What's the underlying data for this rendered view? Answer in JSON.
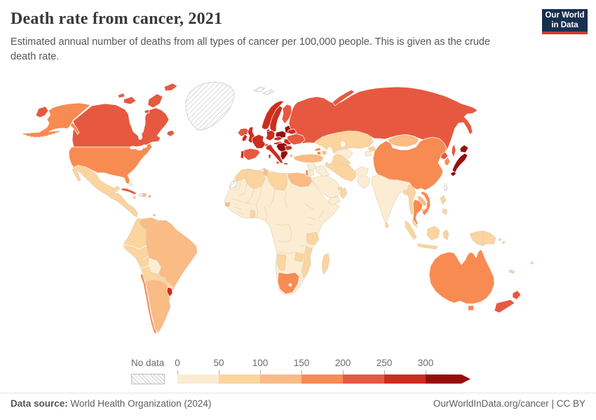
{
  "header": {
    "title": "Death rate from cancer, 2021",
    "subtitle": "Estimated annual number of deaths from all types of cancer per 100,000 people. This is given as the crude death rate.",
    "logo": {
      "line1": "Our World",
      "line2": "in Data",
      "bg": "#18304f",
      "accent": "#cf3934"
    }
  },
  "legend": {
    "no_data_label": "No data",
    "ticks": [
      "0",
      "50",
      "100",
      "150",
      "200",
      "250",
      "300"
    ]
  },
  "footer": {
    "source_label": "Data source:",
    "source_text": " World Health Organization (2024)",
    "right_text": "OurWorldInData.org/cancer | CC BY"
  },
  "chart_data": {
    "type": "heatmap",
    "subtype": "world-choropleth-map",
    "title": "Death rate from cancer, 2021",
    "unit": "deaths per 100,000 people",
    "year": 2021,
    "legend_position": "bottom",
    "bins": [
      {
        "label": "0-50",
        "color": "#fcecd2"
      },
      {
        "label": "50-100",
        "color": "#fbd49e"
      },
      {
        "label": "100-150",
        "color": "#fabb84"
      },
      {
        "label": "150-200",
        "color": "#f88b52"
      },
      {
        "label": "200-250",
        "color": "#e65940"
      },
      {
        "label": "250-300",
        "color": "#cd2d1e"
      },
      {
        "label": "300+",
        "color": "#970d0d"
      }
    ],
    "no_data_style": "hatch",
    "regions": {
      "canada": {
        "name": "Canada",
        "bin": 4
      },
      "usa": {
        "name": "United States",
        "bin": 3
      },
      "greenland": {
        "name": "Greenland",
        "bin": -1
      },
      "mexico": {
        "name": "Mexico",
        "bin": 1
      },
      "central-america": {
        "name": "Central America",
        "bin": 1
      },
      "cuba": {
        "name": "Cuba",
        "bin": 4
      },
      "haiti": {
        "name": "Haiti",
        "bin": 0
      },
      "dominican-republic": {
        "name": "Dominican Republic",
        "bin": 2
      },
      "jamaica": {
        "name": "Jamaica",
        "bin": 1
      },
      "puerto-rico": {
        "name": "Puerto Rico",
        "bin": 3
      },
      "bahamas": {
        "name": "Bahamas",
        "bin": 0
      },
      "trinidad": {
        "name": "Trinidad and Tobago",
        "bin": 2
      },
      "colombia": {
        "name": "Colombia",
        "bin": 1
      },
      "venezuela": {
        "name": "Venezuela",
        "bin": 2
      },
      "guyana-suriname": {
        "name": "Guyana and Suriname",
        "bin": 1
      },
      "french-guiana": {
        "name": "French Guiana",
        "bin": -1
      },
      "ecuador": {
        "name": "Ecuador",
        "bin": 1
      },
      "peru": {
        "name": "Peru",
        "bin": 1
      },
      "bolivia": {
        "name": "Bolivia",
        "bin": 0
      },
      "brazil": {
        "name": "Brazil",
        "bin": 2
      },
      "paraguay": {
        "name": "Paraguay",
        "bin": 1
      },
      "chile": {
        "name": "Chile",
        "bin": 3
      },
      "argentina": {
        "name": "Argentina",
        "bin": 2
      },
      "uruguay": {
        "name": "Uruguay",
        "bin": 5
      },
      "iceland": {
        "name": "Iceland",
        "bin": 4
      },
      "ireland": {
        "name": "Ireland",
        "bin": 5
      },
      "uk": {
        "name": "United Kingdom",
        "bin": 5
      },
      "portugal": {
        "name": "Portugal",
        "bin": 5
      },
      "spain": {
        "name": "Spain",
        "bin": 4
      },
      "france": {
        "name": "France",
        "bin": 5
      },
      "germany": {
        "name": "Germany",
        "bin": 5
      },
      "denmark": {
        "name": "Denmark",
        "bin": 6
      },
      "norway": {
        "name": "Norway",
        "bin": 5
      },
      "sweden": {
        "name": "Sweden",
        "bin": 5
      },
      "finland": {
        "name": "Finland",
        "bin": 4
      },
      "baltic-states": {
        "name": "Baltic states",
        "bin": 6
      },
      "poland": {
        "name": "Poland",
        "bin": 6
      },
      "czechia": {
        "name": "Czechia",
        "bin": 5
      },
      "austria": {
        "name": "Austria",
        "bin": 5
      },
      "switzerland": {
        "name": "Switzerland",
        "bin": 4
      },
      "italy": {
        "name": "Italy",
        "bin": 5
      },
      "hungary-balkans": {
        "name": "Hungary, Croatia and Serbia",
        "bin": 6
      },
      "romania": {
        "name": "Romania",
        "bin": 5
      },
      "bulgaria": {
        "name": "Bulgaria",
        "bin": 5
      },
      "greece": {
        "name": "Greece",
        "bin": 6
      },
      "belarus": {
        "name": "Belarus",
        "bin": 5
      },
      "ukraine": {
        "name": "Ukraine",
        "bin": 4
      },
      "russia": {
        "name": "Russia",
        "bin": 4
      },
      "turkey": {
        "name": "Turkey",
        "bin": 2
      },
      "georgia": {
        "name": "Georgia",
        "bin": 3
      },
      "armenia": {
        "name": "Armenia",
        "bin": 3
      },
      "azerbaijan": {
        "name": "Azerbaijan",
        "bin": 2
      },
      "syria": {
        "name": "Syria",
        "bin": 0
      },
      "iraq": {
        "name": "Iraq",
        "bin": 0
      },
      "israel": {
        "name": "Israel",
        "bin": 3
      },
      "jordan": {
        "name": "Jordan",
        "bin": 0
      },
      "saudi-arabia": {
        "name": "Saudi Arabia",
        "bin": 0
      },
      "yemen": {
        "name": "Yemen",
        "bin": 0
      },
      "oman": {
        "name": "Oman",
        "bin": 1
      },
      "uae": {
        "name": "United Arab Emirates",
        "bin": 1
      },
      "iran": {
        "name": "Iran",
        "bin": 1
      },
      "afghanistan": {
        "name": "Afghanistan",
        "bin": 0
      },
      "pakistan": {
        "name": "Pakistan",
        "bin": 0
      },
      "turkmenistan": {
        "name": "Turkmenistan",
        "bin": 1
      },
      "uzbekistan": {
        "name": "Uzbekistan",
        "bin": 0
      },
      "kazakhstan": {
        "name": "Kazakhstan",
        "bin": 1
      },
      "kyrgyzstan": {
        "name": "Kyrgyzstan",
        "bin": 1
      },
      "tajikistan": {
        "name": "Tajikistan",
        "bin": 0
      },
      "india": {
        "name": "India",
        "bin": 0
      },
      "sri-lanka": {
        "name": "Sri Lanka",
        "bin": 1
      },
      "bangladesh": {
        "name": "Bangladesh",
        "bin": 1
      },
      "myanmar": {
        "name": "Myanmar",
        "bin": 1
      },
      "thailand": {
        "name": "Thailand",
        "bin": 3
      },
      "laos": {
        "name": "Laos",
        "bin": 2
      },
      "cambodia": {
        "name": "Cambodia",
        "bin": 2
      },
      "vietnam": {
        "name": "Vietnam",
        "bin": 3
      },
      "malaysia": {
        "name": "Malaysia",
        "bin": 1
      },
      "indonesia": {
        "name": "Indonesia",
        "bin": 1
      },
      "philippines": {
        "name": "Philippines",
        "bin": 1
      },
      "papua-new-guinea": {
        "name": "Papua New Guinea",
        "bin": 1
      },
      "china": {
        "name": "China",
        "bin": 3
      },
      "mongolia": {
        "name": "Mongolia",
        "bin": 2
      },
      "north-korea": {
        "name": "North Korea",
        "bin": 4
      },
      "south-korea": {
        "name": "South Korea",
        "bin": 3
      },
      "japan": {
        "name": "Japan",
        "bin": 6
      },
      "taiwan": {
        "name": "Taiwan",
        "bin": -1
      },
      "morocco": {
        "name": "Morocco",
        "bin": 1
      },
      "western-sahara": {
        "name": "Western Sahara",
        "bin": -1
      },
      "algeria": {
        "name": "Algeria",
        "bin": 1
      },
      "tunisia": {
        "name": "Tunisia",
        "bin": 2
      },
      "libya": {
        "name": "Libya",
        "bin": 1
      },
      "egypt": {
        "name": "Egypt",
        "bin": 2
      },
      "senegal": {
        "name": "Senegal",
        "bin": 2
      },
      "ghana": {
        "name": "Ghana",
        "bin": 1
      },
      "africa-other": {
        "name": "Other African countries",
        "bin": 0
      },
      "tanzania": {
        "name": "Tanzania",
        "bin": 1
      },
      "mozambique": {
        "name": "Mozambique",
        "bin": 1
      },
      "zimbabwe": {
        "name": "Zimbabwe",
        "bin": 1
      },
      "namibia": {
        "name": "Namibia",
        "bin": 1
      },
      "south-africa": {
        "name": "South Africa",
        "bin": 3
      },
      "lesotho": {
        "name": "Lesotho",
        "bin": 0
      },
      "madagascar": {
        "name": "Madagascar",
        "bin": 1
      },
      "svalbard": {
        "name": "Svalbard",
        "bin": -1
      },
      "australia": {
        "name": "Australia",
        "bin": 3
      },
      "new-zealand": {
        "name": "New Zealand",
        "bin": 4
      },
      "new-caledonia": {
        "name": "New Caledonia",
        "bin": 1
      },
      "fiji": {
        "name": "Fiji",
        "bin": 1
      },
      "solomon-islands": {
        "name": "Solomon Islands",
        "bin": 1
      }
    }
  }
}
